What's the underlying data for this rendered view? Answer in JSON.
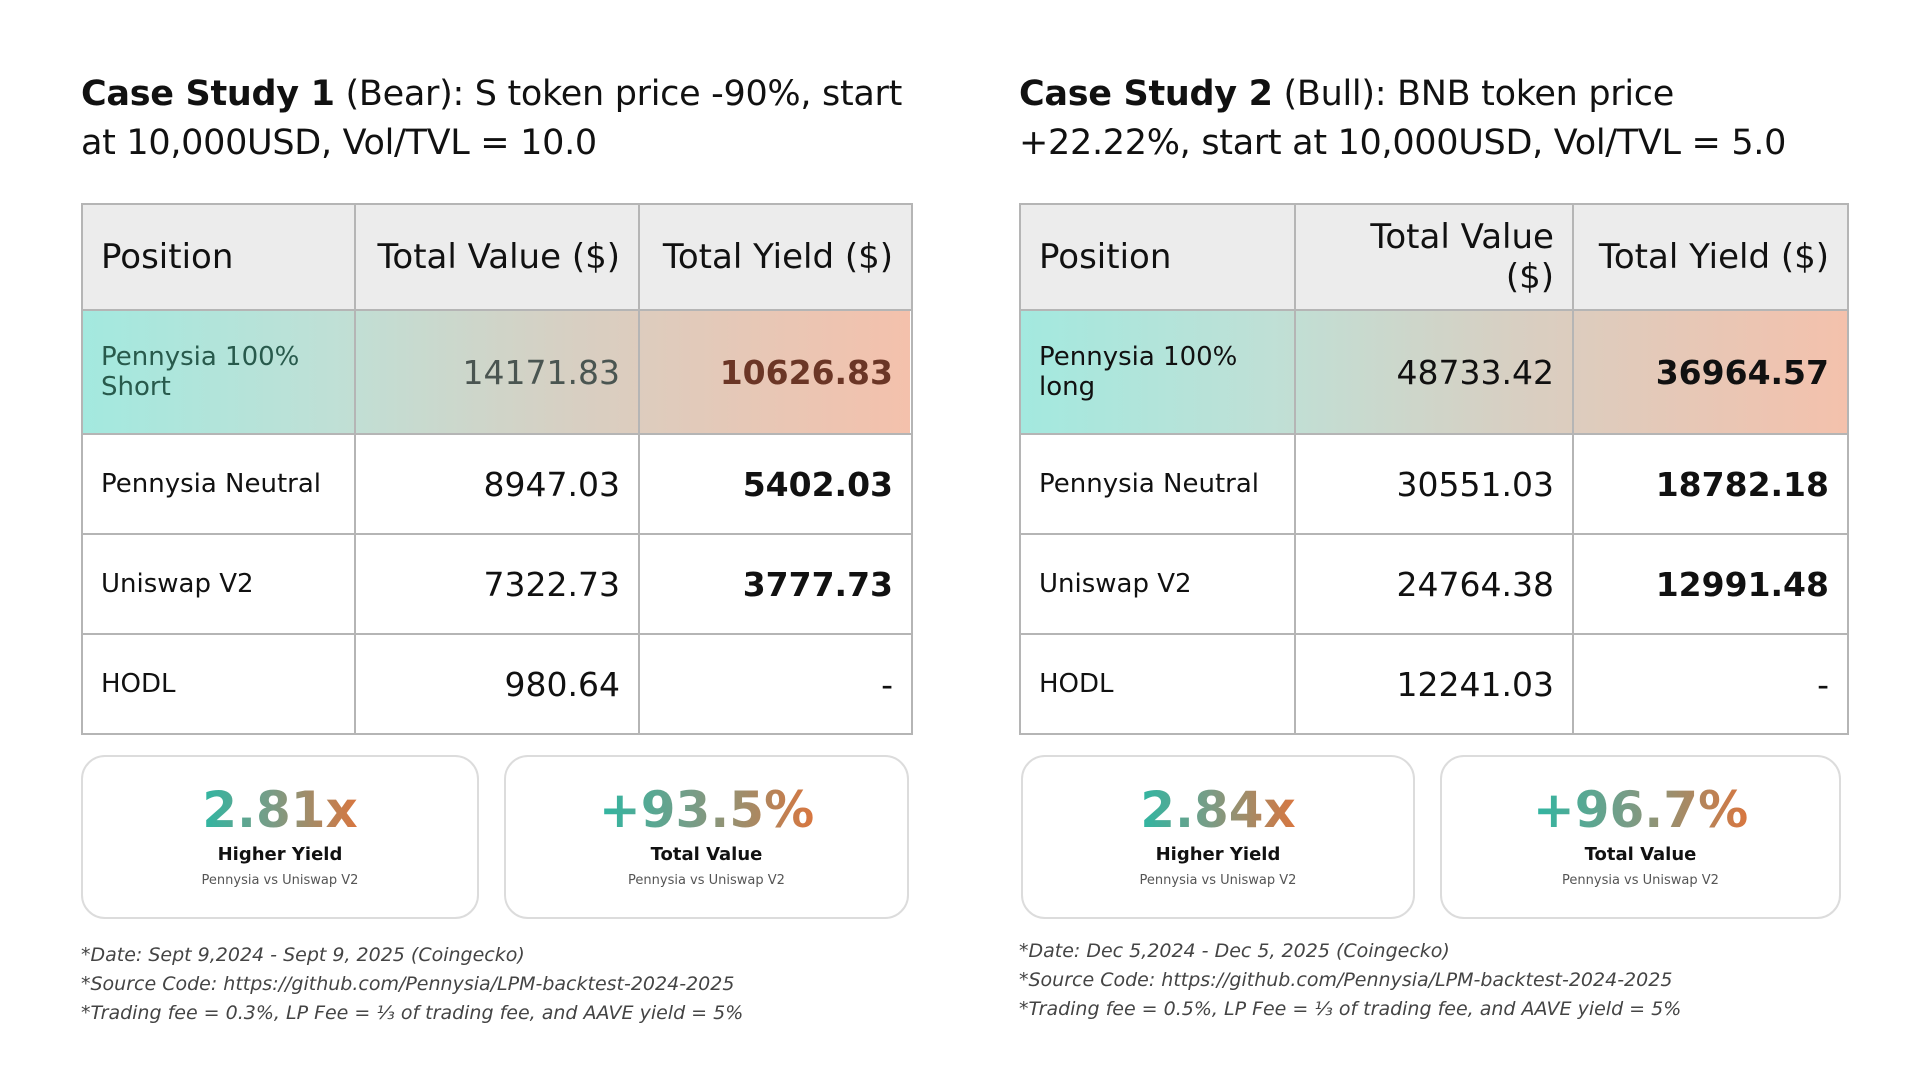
{
  "cases": [
    {
      "title_bold": "Case Study 1",
      "title_rest": " (Bear): S token price -90%, start at 10,000USD, Vol/TVL = 10.0",
      "headers": [
        "Position",
        "Total Value ($)",
        "Total Yield ($)"
      ],
      "rows": [
        [
          "Pennysia 100% Short",
          "14171.83",
          "10626.83"
        ],
        [
          "Pennysia Neutral",
          "8947.03",
          "5402.03"
        ],
        [
          "Uniswap V2",
          "7322.73",
          "3777.73"
        ],
        [
          "HODL",
          "980.64",
          "-"
        ]
      ],
      "cards": [
        {
          "big": "2.81x",
          "label": "Higher Yield",
          "sub": "Pennysia vs Uniswap V2"
        },
        {
          "big": "+93.5%",
          "label": "Total Value",
          "sub": "Pennysia vs Uniswap V2"
        }
      ],
      "notes": [
        "*Date: Sept 9,2024 - Sept 9, 2025 (Coingecko)",
        "*Source Code: https://github.com/Pennysia/LPM-backtest-2024-2025",
        "*Trading fee = 0.3%, LP Fee = ⅓ of trading fee, and AAVE yield = 5%"
      ]
    },
    {
      "title_bold": "Case Study 2",
      "title_rest": " (Bull): BNB token price +22.22%, start at 10,000USD, Vol/TVL = 5.0",
      "headers": [
        "Position",
        "Total Value ($)",
        "Total Yield ($)"
      ],
      "rows": [
        [
          "Pennysia 100% long",
          "48733.42",
          "36964.57"
        ],
        [
          "Pennysia Neutral",
          "30551.03",
          "18782.18"
        ],
        [
          "Uniswap V2",
          "24764.38",
          "12991.48"
        ],
        [
          "HODL",
          "12241.03",
          "-"
        ]
      ],
      "cards": [
        {
          "big": "2.84x",
          "label": "Higher Yield",
          "sub": "Pennysia vs Uniswap V2"
        },
        {
          "big": "+96.7%",
          "label": "Total Value",
          "sub": "Pennysia vs Uniswap V2"
        }
      ],
      "notes": [
        "*Date: Dec 5,2024 - Dec 5, 2025 (Coingecko)",
        "*Source Code: https://github.com/Pennysia/LPM-backtest-2024-2025",
        "*Trading fee = 0.5%, LP Fee = ⅓ of trading fee, and AAVE yield = 5%"
      ]
    }
  ]
}
